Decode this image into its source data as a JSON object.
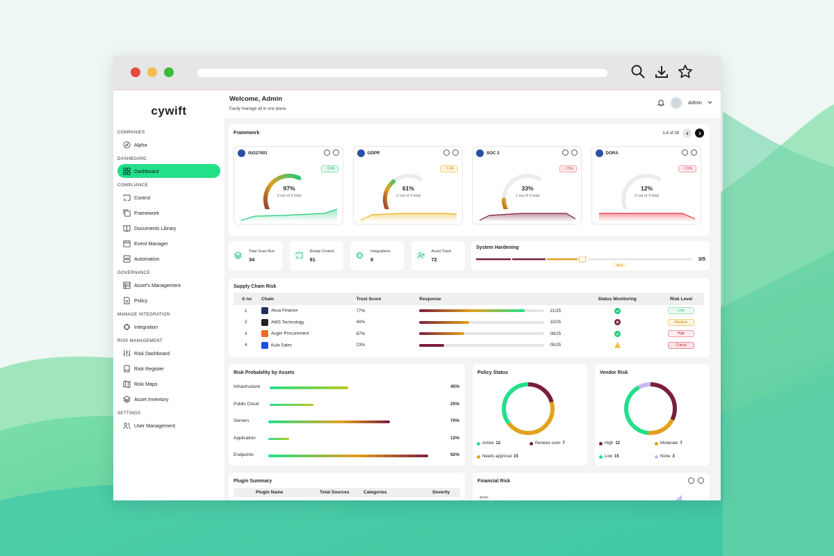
{
  "app": {
    "logo": "cywift"
  },
  "header": {
    "title": "Welcome, Admin",
    "subtitle": "Easily manage all in one place.",
    "user": "Admin"
  },
  "sidebar": {
    "sections": [
      {
        "title": "COMPANIES",
        "items": [
          {
            "label": "Alpha",
            "icon": "compass-icon"
          }
        ]
      },
      {
        "title": "DASHBOARD",
        "items": [
          {
            "label": "Dashboard",
            "icon": "grid-icon",
            "active": true
          }
        ]
      },
      {
        "title": "COMPLIANCE",
        "items": [
          {
            "label": "Control",
            "icon": "cast-icon"
          },
          {
            "label": "Framework",
            "icon": "copy-icon"
          },
          {
            "label": "Documents Library",
            "icon": "book-icon"
          },
          {
            "label": "Event Manager",
            "icon": "calendar-icon"
          },
          {
            "label": "Automation",
            "icon": "server-icon"
          }
        ]
      },
      {
        "title": "GOVERNANCE",
        "items": [
          {
            "label": "Asset's Management",
            "icon": "table-icon"
          },
          {
            "label": "Policy",
            "icon": "file-icon"
          }
        ]
      },
      {
        "title": "MANAGE INTEGRATION",
        "items": [
          {
            "label": "Integration",
            "icon": "chip-icon"
          }
        ]
      },
      {
        "title": "RISK MANAGEMENT",
        "items": [
          {
            "label": "Risk Dashboard",
            "icon": "sliders-icon"
          },
          {
            "label": "Risk Register",
            "icon": "register-icon"
          },
          {
            "label": "Risk Maps",
            "icon": "map-icon"
          },
          {
            "label": "Asset Inventory",
            "icon": "layers-icon"
          }
        ]
      },
      {
        "title": "SETTINGS",
        "items": [
          {
            "label": "User Management",
            "icon": "users-icon"
          }
        ]
      }
    ]
  },
  "framework": {
    "title": "Framework",
    "pager": "1-4 of 28",
    "cards": [
      {
        "name": "ISO27001",
        "pct": "97%",
        "value": 97,
        "sub": "3 out of 3 total",
        "badge": "↑ 3.4%",
        "trend": "up",
        "color": "#22c97a"
      },
      {
        "name": "GDPR",
        "pct": "61%",
        "value": 61,
        "sub": "2 out of 3 total",
        "badge": "↑ 3.4%",
        "trend": "up",
        "color": "#e8b21e"
      },
      {
        "name": "SOC 2",
        "pct": "33%",
        "value": 33,
        "sub": "1 out of 3 total",
        "badge": "↓ 2.5%",
        "trend": "down",
        "color": "#7a1e3a"
      },
      {
        "name": "DORA",
        "pct": "12%",
        "value": 12,
        "sub": "0 out of 3 total",
        "badge": "↓ 2.5%",
        "trend": "down",
        "color": "#e8323e"
      }
    ]
  },
  "stats": [
    {
      "label": "Total Scan Run",
      "value": "34",
      "icon": "layers-icon"
    },
    {
      "label": "Ready Control",
      "value": "91",
      "icon": "cast-icon"
    },
    {
      "label": "Integrations",
      "value": "8",
      "icon": "chip-icon"
    },
    {
      "label": "Asset Track",
      "value": "72",
      "icon": "user-plus-icon"
    }
  ],
  "hardening": {
    "title": "System Hardening",
    "value": "3/5",
    "next": "Next"
  },
  "supply": {
    "title": "Supply Chain Risk",
    "headers": [
      "S no",
      "Chain",
      "Trust Score",
      "Response",
      "Status Monitoring",
      "Risk Level"
    ],
    "rows": [
      {
        "sno": "1",
        "chain": "Akua Finance",
        "trust": "77%",
        "response": "21/25",
        "fill": 0.84,
        "status": "ok",
        "level": "Low"
      },
      {
        "sno": "2",
        "chain": "AWS Technology",
        "trust": "49%",
        "response": "10/25",
        "fill": 0.4,
        "status": "error",
        "level": "Medium"
      },
      {
        "sno": "3",
        "chain": "Auger Procurement",
        "trust": "87%",
        "response": "09/25",
        "fill": 0.36,
        "status": "ok",
        "level": "High"
      },
      {
        "sno": "4",
        "chain": "Kula Sales",
        "trust": "23%",
        "response": "05/25",
        "fill": 0.2,
        "status": "warn",
        "level": "Critical"
      }
    ]
  },
  "riskProb": {
    "title": "Risk Probability by Assets",
    "rows": [
      {
        "label": "Infrastructure",
        "pct": "45%",
        "value": 45
      },
      {
        "label": "Public Cloud",
        "pct": "25%",
        "value": 25
      },
      {
        "label": "Servers",
        "pct": "70%",
        "value": 70
      },
      {
        "label": "Application",
        "pct": "12%",
        "value": 12
      },
      {
        "label": "Endpoints",
        "pct": "92%",
        "value": 92
      }
    ]
  },
  "policy": {
    "title": "Policy Status",
    "segments": [
      {
        "label": "Active",
        "value": "12",
        "num": 12,
        "color": "#22e08a"
      },
      {
        "label": "Renews soon",
        "value": "7",
        "num": 7,
        "color": "#7a1e3a"
      },
      {
        "label": "Needs approval",
        "value": "15",
        "num": 15,
        "color": "#e2a21e"
      }
    ]
  },
  "vendor": {
    "title": "Vendor Risk",
    "segments": [
      {
        "label": "High",
        "value": "12",
        "num": 12,
        "color": "#7a1e3a"
      },
      {
        "label": "Moderate",
        "value": "7",
        "num": 7,
        "color": "#e2a21e"
      },
      {
        "label": "Low",
        "value": "15",
        "num": 15,
        "color": "#22e08a"
      },
      {
        "label": "None",
        "value": "3",
        "num": 3,
        "color": "#c9b8f2"
      }
    ]
  },
  "plugin": {
    "title": "Plugin Summary",
    "headers": [
      "Plugin Name",
      "Total Sources",
      "Categories",
      "Severity"
    ]
  },
  "financial": {
    "title": "Financial Risk",
    "ytick": "$1000"
  },
  "colors": {
    "accent": "#22e08a",
    "maroon": "#7a1e3a",
    "amber": "#e2a21e"
  }
}
